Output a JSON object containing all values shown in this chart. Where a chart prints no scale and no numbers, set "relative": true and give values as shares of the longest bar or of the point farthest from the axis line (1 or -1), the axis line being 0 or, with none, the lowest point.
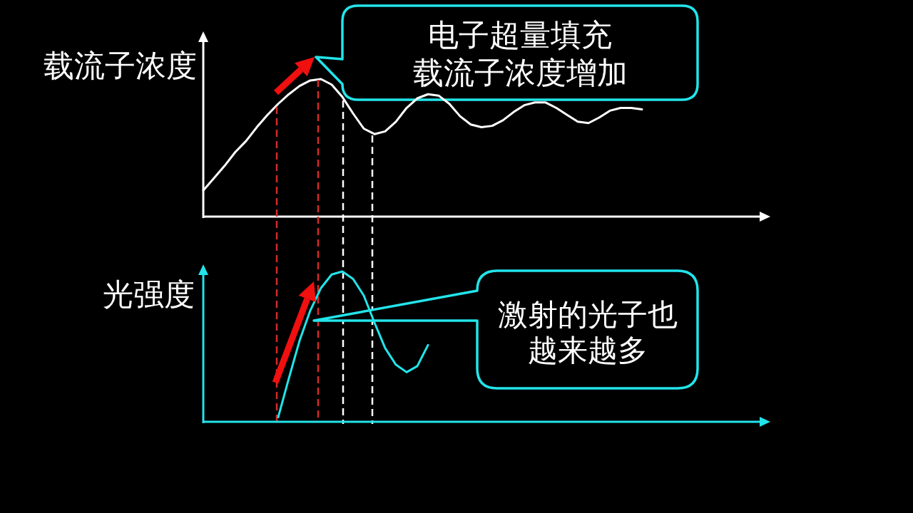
{
  "chart_data": [
    {
      "type": "line",
      "ylabel": "载流子浓度",
      "relative": true,
      "categories": [
        null,
        null,
        null,
        null,
        null,
        null,
        null,
        null,
        null,
        null,
        null,
        null,
        null,
        null,
        null,
        null,
        null,
        null,
        null,
        null,
        null,
        null,
        null,
        null,
        null,
        null,
        null,
        null,
        null,
        null,
        null,
        null,
        null,
        null,
        null,
        null,
        null,
        null,
        null,
        null,
        null,
        null,
        null,
        null,
        null,
        null,
        null,
        null,
        null,
        null,
        null,
        null,
        null
      ],
      "series": [
        {
          "color": "#ffffff",
          "values": [
            0.19,
            0.28,
            0.37,
            0.47,
            0.55,
            0.65,
            0.74,
            0.82,
            0.89,
            0.95,
            0.99,
            1,
            0.96,
            0.87,
            0.75,
            0.64,
            0.6,
            0.62,
            0.69,
            0.79,
            0.86,
            0.89,
            0.88,
            0.82,
            0.73,
            0.67,
            0.65,
            0.66,
            0.7,
            0.76,
            0.81,
            0.83,
            0.83,
            0.79,
            0.74,
            0.69,
            0.68,
            0.72,
            0.77,
            0.79,
            0.79,
            0.78,
            null,
            null,
            null,
            null,
            null,
            null,
            null,
            null,
            null,
            null,
            null
          ]
        }
      ],
      "annotations": [
        "电子超量填充载流子浓度增加"
      ]
    },
    {
      "type": "line",
      "ylabel": "光强度",
      "relative": true,
      "categories": [
        null,
        null,
        null,
        null,
        null,
        null,
        null,
        null,
        null,
        null,
        null,
        null,
        null,
        null,
        null,
        null,
        null,
        null,
        null,
        null,
        null,
        null,
        null,
        null,
        null,
        null,
        null,
        null,
        null,
        null,
        null,
        null,
        null,
        null,
        null,
        null,
        null,
        null,
        null,
        null,
        null,
        null,
        null,
        null,
        null,
        null,
        null,
        null,
        null,
        null,
        null,
        null,
        null
      ],
      "series": [
        {
          "color": "#22e4ea",
          "values": [
            null,
            null,
            null,
            null,
            null,
            null,
            null,
            0.03,
            0.29,
            0.54,
            0.74,
            0.89,
            0.98,
            1,
            0.95,
            0.84,
            0.66,
            0.49,
            0.38,
            0.33,
            0.37,
            0.51,
            null,
            null,
            null,
            null,
            null,
            null,
            null,
            null,
            null,
            null,
            null,
            null,
            null,
            null,
            null,
            null,
            null,
            null,
            null,
            null,
            null,
            null,
            null,
            null,
            null,
            null,
            null,
            null,
            null,
            null,
            null
          ]
        }
      ],
      "annotations": [
        "激射的光子也越来越多"
      ]
    }
  ]
}
